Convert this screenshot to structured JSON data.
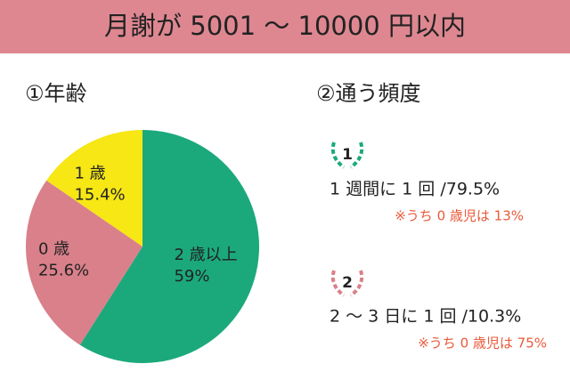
{
  "header": {
    "title": "月謝が 5001 〜 10000 円以内"
  },
  "chart_data": {
    "type": "pie",
    "title": "①年齢",
    "categories": [
      "2 歳以上",
      "0 歳",
      "1 歳"
    ],
    "values": [
      59,
      25.6,
      15.4
    ],
    "value_labels": [
      "59%",
      "25.6%",
      "15.4%"
    ],
    "colors": [
      "#1ba97c",
      "#d9808a",
      "#f6e715"
    ]
  },
  "frequency": {
    "title": "②通う頻度",
    "items": [
      {
        "rank": "1",
        "label": "1 週間に 1 回 /79.5%",
        "note": "※うち 0 歳児は 13%"
      },
      {
        "rank": "2",
        "label": "2 〜 3 日に 1 回 /10.3%",
        "note": "※うち 0 歳児は 75%"
      }
    ]
  }
}
